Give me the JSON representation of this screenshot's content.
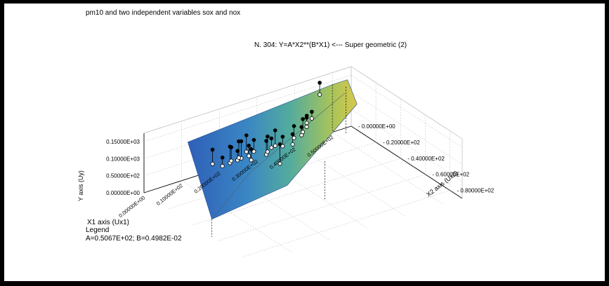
{
  "chart_data": {
    "type": "3d-scatter-surface",
    "header": "pm10 and two independent variables sox and nox",
    "title": "N. 304:  Y=A*X2**(B*X1) <--- Super geometric (2)",
    "xlabel": "X1 axis (Ux1)",
    "ylabel": "Y axis (Uy)",
    "zlabel": "X2 axis (Ux2)",
    "x_ticks": [
      "0.00000E+00",
      "0.10000E+02",
      "0.20000E+02",
      "0.30000E+02",
      "0.40000E+02",
      "0.50000E+02"
    ],
    "y_ticks": [
      "0.00000E+00",
      "0.50000E+02",
      "0.10000E+03",
      "0.15000E+03"
    ],
    "z_ticks": [
      "0.00000E+00",
      "0.20000E+02",
      "0.40000E+02",
      "0.60000E+02",
      "0.80000E+02"
    ],
    "xlim": [
      0,
      55
    ],
    "ylim": [
      0,
      175
    ],
    "zlim": [
      0,
      90
    ],
    "grid": true,
    "legend_title": "Legend",
    "legend_text": "A=0.5067E+02;  B=0.4982E-02",
    "colors": {
      "surface_low": "#2f5fb8",
      "surface_mid": "#4aa8b0",
      "surface_high": "#d2c24a",
      "frame": "#000000"
    },
    "observed": [
      {
        "x1": 10,
        "x2": 25,
        "y": 150
      },
      {
        "x1": 11,
        "x2": 30,
        "y": 135
      },
      {
        "x1": 13,
        "x2": 30,
        "y": 160
      },
      {
        "x1": 14,
        "x2": 28,
        "y": 150
      },
      {
        "x1": 15,
        "x2": 30,
        "y": 140
      },
      {
        "x1": 16,
        "x2": 30,
        "y": 165
      },
      {
        "x1": 16,
        "x2": 28,
        "y": 160
      },
      {
        "x1": 17,
        "x2": 35,
        "y": 150
      },
      {
        "x1": 18,
        "x2": 30,
        "y": 145
      },
      {
        "x1": 19,
        "x2": 25,
        "y": 160
      },
      {
        "x1": 20,
        "x2": 28,
        "y": 150
      },
      {
        "x1": 21,
        "x2": 35,
        "y": 160
      },
      {
        "x1": 22,
        "x2": 33,
        "y": 165
      },
      {
        "x1": 23,
        "x2": 40,
        "y": 155
      },
      {
        "x1": 24,
        "x2": 30,
        "y": 145
      },
      {
        "x1": 25,
        "x2": 30,
        "y": 165
      },
      {
        "x1": 26,
        "x2": 33,
        "y": 150
      },
      {
        "x1": 28,
        "x2": 35,
        "y": 155
      },
      {
        "x1": 30,
        "x2": 30,
        "y": 160
      },
      {
        "x1": 32,
        "x2": 30,
        "y": 150
      },
      {
        "x1": 33,
        "x2": 28,
        "y": 165
      },
      {
        "x1": 35,
        "x2": 25,
        "y": 155
      },
      {
        "x1": 36,
        "x2": 22,
        "y": 150
      },
      {
        "x1": 38,
        "x2": 20,
        "y": 150
      },
      {
        "x1": 45,
        "x2": 5,
        "y": 175
      }
    ],
    "fitted": [
      {
        "x1": 10,
        "x2": 25,
        "y": 108
      },
      {
        "x1": 11,
        "x2": 30,
        "y": 110
      },
      {
        "x1": 13,
        "x2": 30,
        "y": 112
      },
      {
        "x1": 14,
        "x2": 28,
        "y": 110
      },
      {
        "x1": 15,
        "x2": 30,
        "y": 113
      },
      {
        "x1": 16,
        "x2": 30,
        "y": 115
      },
      {
        "x1": 16,
        "x2": 28,
        "y": 112
      },
      {
        "x1": 17,
        "x2": 35,
        "y": 118
      },
      {
        "x1": 18,
        "x2": 30,
        "y": 115
      },
      {
        "x1": 19,
        "x2": 25,
        "y": 112
      },
      {
        "x1": 20,
        "x2": 28,
        "y": 116
      },
      {
        "x1": 21,
        "x2": 35,
        "y": 120
      },
      {
        "x1": 22,
        "x2": 33,
        "y": 120
      },
      {
        "x1": 23,
        "x2": 40,
        "y": 98
      },
      {
        "x1": 24,
        "x2": 30,
        "y": 118
      },
      {
        "x1": 25,
        "x2": 30,
        "y": 120
      },
      {
        "x1": 26,
        "x2": 33,
        "y": 122
      },
      {
        "x1": 28,
        "x2": 35,
        "y": 125
      },
      {
        "x1": 30,
        "x2": 30,
        "y": 125
      },
      {
        "x1": 32,
        "x2": 30,
        "y": 126
      },
      {
        "x1": 33,
        "x2": 28,
        "y": 127
      },
      {
        "x1": 35,
        "x2": 25,
        "y": 128
      },
      {
        "x1": 36,
        "x2": 22,
        "y": 129
      },
      {
        "x1": 38,
        "x2": 20,
        "y": 130
      },
      {
        "x1": 45,
        "x2": 5,
        "y": 140
      }
    ]
  }
}
